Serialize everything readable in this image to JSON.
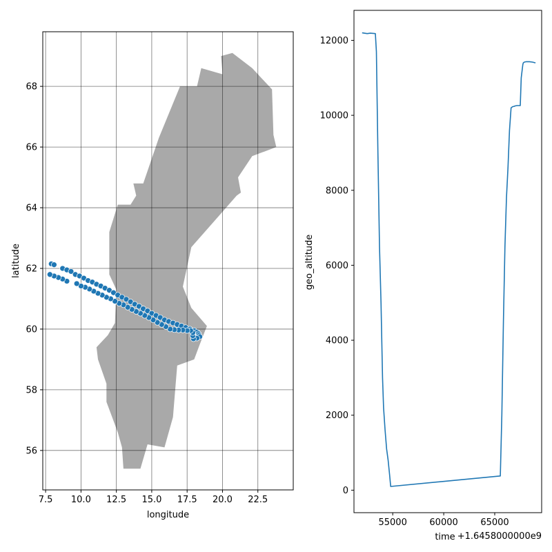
{
  "chart_data": [
    {
      "type": "scatter",
      "xlabel": "longitude",
      "ylabel": "latitude",
      "xlim": [
        7.3,
        25.0
      ],
      "ylim": [
        54.7,
        69.8
      ],
      "xticks": [
        "7.5",
        "10.0",
        "12.5",
        "15.0",
        "17.5",
        "20.0",
        "22.5"
      ],
      "yticks": [
        "56",
        "58",
        "60",
        "62",
        "64",
        "66",
        "68"
      ],
      "grid": true,
      "colors": {
        "points": "#1f77b4",
        "land": "#a9a9a9",
        "grid": "#000000"
      },
      "land_outline": [
        [
          13.0,
          55.4
        ],
        [
          14.2,
          55.4
        ],
        [
          14.7,
          56.2
        ],
        [
          15.9,
          56.1
        ],
        [
          16.5,
          57.1
        ],
        [
          16.8,
          58.8
        ],
        [
          18.0,
          59.0
        ],
        [
          18.4,
          59.5
        ],
        [
          18.9,
          60.1
        ],
        [
          17.8,
          60.7
        ],
        [
          17.2,
          61.4
        ],
        [
          17.8,
          62.7
        ],
        [
          19.5,
          63.6
        ],
        [
          21.0,
          64.4
        ],
        [
          21.3,
          64.5
        ],
        [
          21.1,
          65.0
        ],
        [
          22.1,
          65.7
        ],
        [
          23.8,
          66.0
        ],
        [
          23.6,
          66.4
        ],
        [
          23.5,
          67.9
        ],
        [
          22.1,
          68.6
        ],
        [
          20.7,
          69.1
        ],
        [
          19.9,
          69.0
        ],
        [
          20.0,
          68.4
        ],
        [
          18.5,
          68.6
        ],
        [
          18.2,
          68.0
        ],
        [
          17.0,
          68.0
        ],
        [
          15.5,
          66.3
        ],
        [
          14.4,
          64.8
        ],
        [
          13.7,
          64.8
        ],
        [
          13.9,
          64.4
        ],
        [
          13.5,
          64.1
        ],
        [
          12.6,
          64.1
        ],
        [
          12.0,
          63.2
        ],
        [
          12.0,
          61.8
        ],
        [
          12.5,
          61.3
        ],
        [
          12.4,
          60.2
        ],
        [
          11.9,
          59.8
        ],
        [
          11.1,
          59.4
        ],
        [
          11.2,
          59.0
        ],
        [
          11.8,
          58.2
        ],
        [
          11.8,
          57.6
        ],
        [
          12.6,
          56.6
        ],
        [
          12.9,
          56.1
        ],
        [
          13.0,
          55.4
        ]
      ],
      "series": [
        {
          "points": [
            [
              7.9,
              62.15
            ],
            [
              8.1,
              62.12
            ],
            [
              8.7,
              62.0
            ],
            [
              9.0,
              61.95
            ],
            [
              9.3,
              61.9
            ],
            [
              9.6,
              61.8
            ],
            [
              9.9,
              61.75
            ],
            [
              10.2,
              61.68
            ],
            [
              10.5,
              61.6
            ],
            [
              10.8,
              61.55
            ],
            [
              11.1,
              61.48
            ],
            [
              11.4,
              61.42
            ],
            [
              11.7,
              61.35
            ],
            [
              12.0,
              61.28
            ],
            [
              12.3,
              61.2
            ],
            [
              12.6,
              61.12
            ],
            [
              12.9,
              61.05
            ],
            [
              13.2,
              60.98
            ],
            [
              13.5,
              60.9
            ],
            [
              13.8,
              60.82
            ],
            [
              14.1,
              60.75
            ],
            [
              14.4,
              60.67
            ],
            [
              14.7,
              60.6
            ],
            [
              15.0,
              60.52
            ],
            [
              15.3,
              60.45
            ],
            [
              15.6,
              60.38
            ],
            [
              15.9,
              60.3
            ],
            [
              16.2,
              60.25
            ],
            [
              16.5,
              60.2
            ],
            [
              16.8,
              60.15
            ],
            [
              17.1,
              60.1
            ],
            [
              17.4,
              60.05
            ],
            [
              17.7,
              60.0
            ],
            [
              18.0,
              59.95
            ],
            [
              18.2,
              59.9
            ],
            [
              18.3,
              59.85
            ],
            [
              18.35,
              59.8
            ],
            [
              18.4,
              59.75
            ],
            [
              18.2,
              59.7
            ],
            [
              17.95,
              59.68
            ],
            [
              17.9,
              59.78
            ],
            [
              17.9,
              59.88
            ],
            [
              17.75,
              59.95
            ],
            [
              17.5,
              59.95
            ],
            [
              17.2,
              59.97
            ],
            [
              16.9,
              59.97
            ],
            [
              16.6,
              59.98
            ],
            [
              16.3,
              60.0
            ],
            [
              16.0,
              60.08
            ],
            [
              15.7,
              60.15
            ],
            [
              15.4,
              60.22
            ],
            [
              15.1,
              60.3
            ],
            [
              14.8,
              60.38
            ],
            [
              14.5,
              60.45
            ],
            [
              14.2,
              60.52
            ],
            [
              13.9,
              60.58
            ],
            [
              13.6,
              60.65
            ],
            [
              13.3,
              60.72
            ],
            [
              13.0,
              60.8
            ],
            [
              12.7,
              60.85
            ],
            [
              12.4,
              60.92
            ],
            [
              12.1,
              61.0
            ],
            [
              11.8,
              61.05
            ],
            [
              11.5,
              61.12
            ],
            [
              11.2,
              61.18
            ],
            [
              10.9,
              61.25
            ],
            [
              10.6,
              61.32
            ],
            [
              10.3,
              61.38
            ],
            [
              10.0,
              61.42
            ],
            [
              9.7,
              61.5
            ],
            [
              9.0,
              61.58
            ],
            [
              8.7,
              61.65
            ],
            [
              8.4,
              61.7
            ],
            [
              8.1,
              61.75
            ],
            [
              7.8,
              61.8
            ]
          ]
        }
      ]
    },
    {
      "type": "line",
      "xlabel": "time",
      "offset_text": "+1.6458000000e9",
      "ylabel": "geo_altitude",
      "xlim": [
        51200,
        69600
      ],
      "ylim": [
        -600,
        12800
      ],
      "xticks": [
        "55000",
        "60000",
        "65000"
      ],
      "yticks": [
        "0",
        "2000",
        "4000",
        "6000",
        "8000",
        "10000",
        "12000"
      ],
      "grid": false,
      "colors": {
        "line": "#1f77b4"
      },
      "series": [
        {
          "x": [
            52000,
            52500,
            52800,
            53300,
            53400,
            53550,
            53700,
            53850,
            54000,
            54100,
            54250,
            54400,
            54550,
            54700,
            54800,
            65550,
            65700,
            65850,
            66000,
            66150,
            66300,
            66450,
            66600,
            66750,
            66900,
            67000,
            67200,
            67500,
            67600,
            67750,
            67800,
            67900,
            68100,
            68400,
            68700,
            69000
          ],
          "y": [
            12200,
            12180,
            12190,
            12180,
            11700,
            9000,
            6500,
            5000,
            3000,
            2200,
            1600,
            1100,
            800,
            400,
            100,
            380,
            2000,
            4500,
            6500,
            7800,
            8600,
            9600,
            10200,
            10230,
            10240,
            10250,
            10260,
            10260,
            11000,
            11350,
            11400,
            11420,
            11430,
            11430,
            11420,
            11400
          ]
        }
      ]
    }
  ]
}
